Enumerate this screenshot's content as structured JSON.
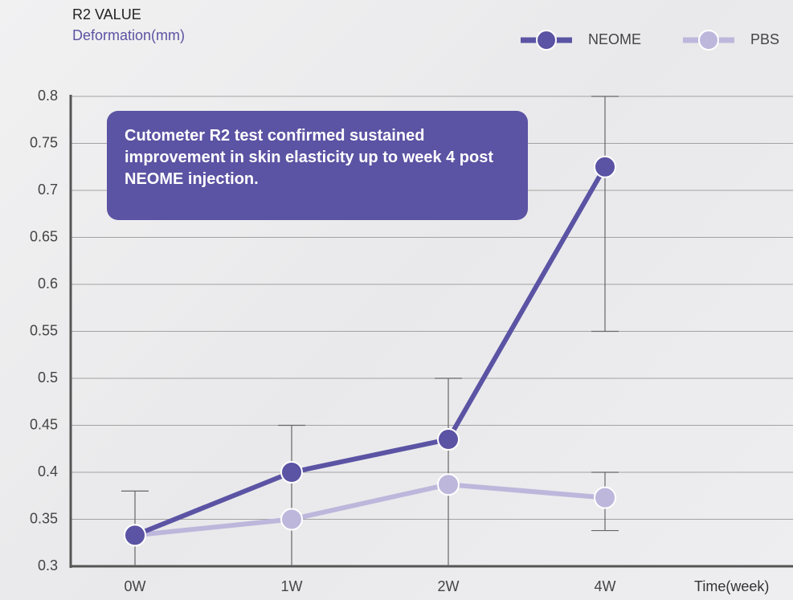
{
  "chart_data": {
    "type": "line",
    "title": "R2 VALUE",
    "subtitle": "Deformation(mm)",
    "x_label": "Time(week)",
    "annotation": "Cutometer R2 test confirmed sustained improvement in skin elasticity up to week 4 post NEOME injection.",
    "categories": [
      "0W",
      "1W",
      "2W",
      "4W"
    ],
    "series": [
      {
        "name": "NEOME",
        "color": "#5b53a3",
        "values": [
          0.333,
          0.4,
          0.435,
          0.725
        ],
        "error_high": [
          0.38,
          0.45,
          0.5,
          0.8
        ],
        "error_low": [
          0.3,
          0.3,
          0.3,
          0.55
        ]
      },
      {
        "name": "PBS",
        "color": "#bdb7dc",
        "values": [
          0.333,
          0.35,
          0.387,
          0.373
        ],
        "error_high": [
          null,
          null,
          null,
          0.4
        ],
        "error_low": [
          null,
          null,
          null,
          0.338
        ]
      }
    ],
    "ylim": [
      0.3,
      0.8
    ],
    "yticks": [
      0.3,
      0.35,
      0.4,
      0.45,
      0.5,
      0.55,
      0.6,
      0.65,
      0.7,
      0.75,
      0.8
    ],
    "grid": true,
    "legend": "top-right"
  }
}
